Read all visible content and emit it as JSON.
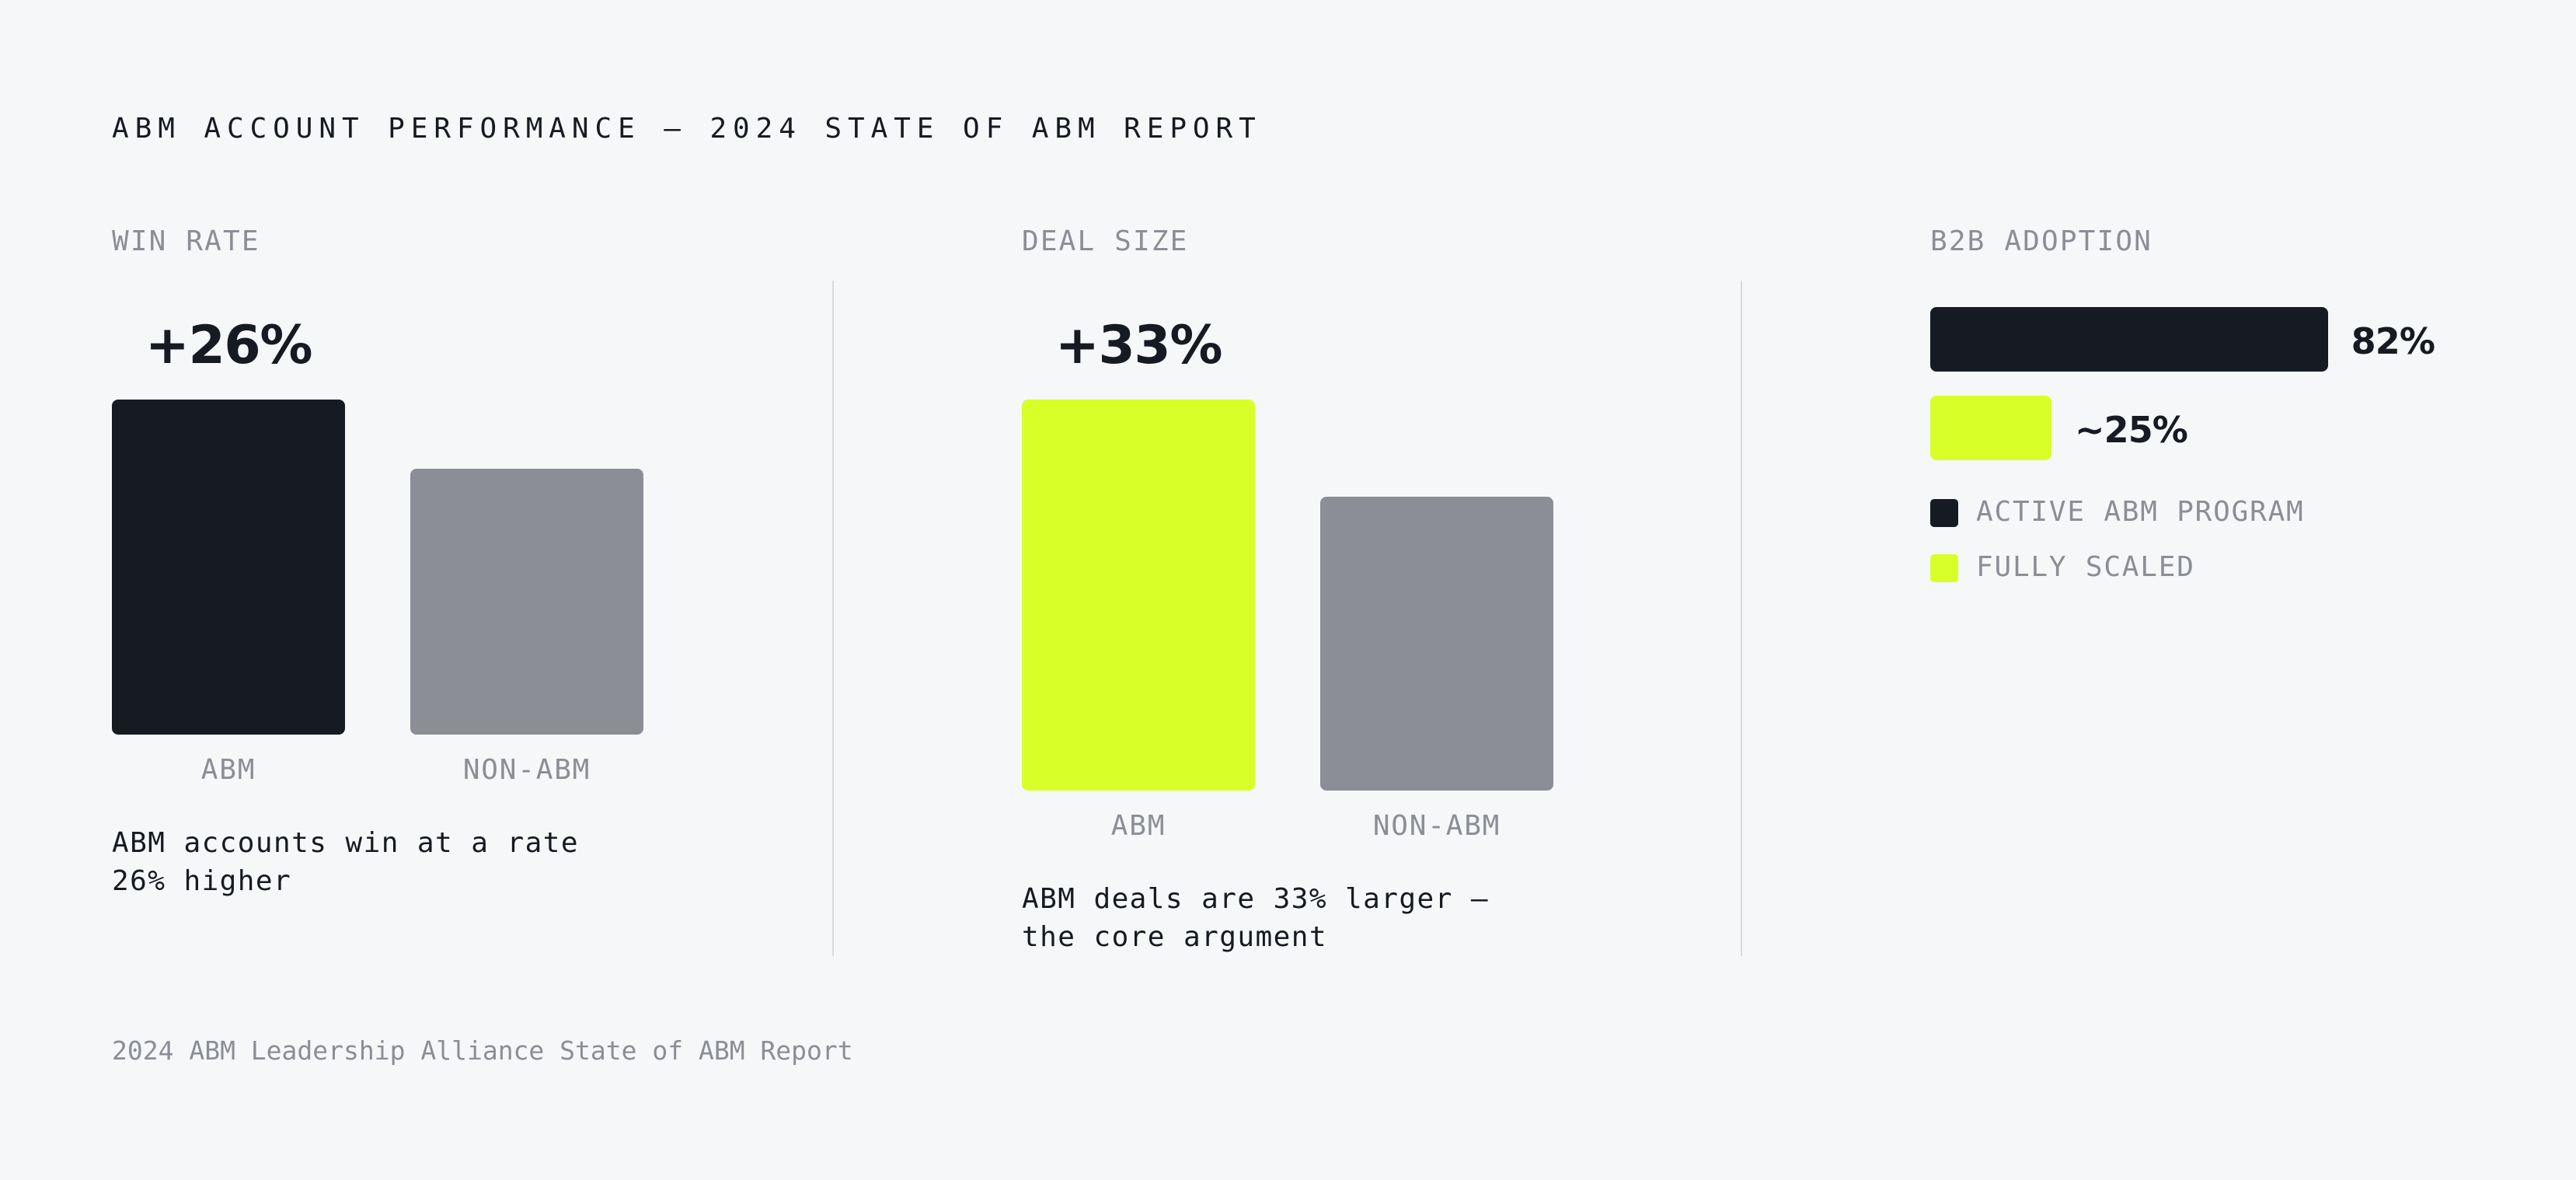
{
  "title": "ABM ACCOUNT PERFORMANCE — 2024 STATE OF ABM REPORT",
  "source": "2024 ABM Leadership Alliance State of ABM Report",
  "chart_data": [
    {
      "type": "bar",
      "title": "WIN RATE",
      "annotation": "+26%",
      "categories": [
        "ABM",
        "NON-ABM"
      ],
      "values": [
        126,
        100
      ],
      "colors": [
        "#161a22",
        "#8b8e96"
      ],
      "caption": "ABM accounts win at a rate 26% higher"
    },
    {
      "type": "bar",
      "title": "DEAL SIZE",
      "annotation": "+33%",
      "categories": [
        "ABM",
        "NON-ABM"
      ],
      "values": [
        133,
        100
      ],
      "colors": [
        "#d8ff28",
        "#8b8e96"
      ],
      "caption": "ABM deals are 33% larger — the core argument"
    },
    {
      "type": "hbar",
      "title": "B2B ADOPTION",
      "categories": [
        "ACTIVE ABM PROGRAM",
        "FULLY SCALED"
      ],
      "values": [
        82,
        25
      ],
      "value_labels": [
        "82%",
        "~25%"
      ],
      "colors": [
        "#161a22",
        "#d8ff28"
      ],
      "legend": true
    }
  ]
}
